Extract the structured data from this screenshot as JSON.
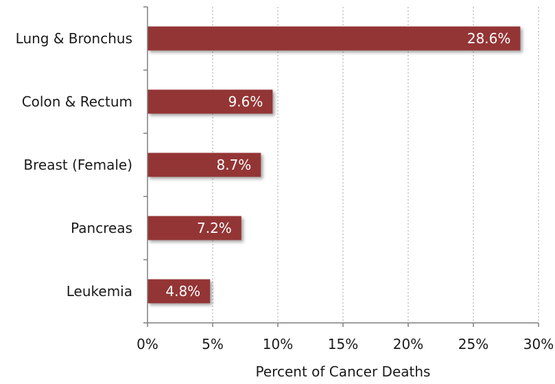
{
  "chart_data": {
    "type": "bar",
    "orientation": "horizontal",
    "title": "",
    "xlabel": "Percent of Cancer Deaths",
    "ylabel": "",
    "categories": [
      "Lung & Bronchus",
      "Colon & Rectum",
      "Breast (Female)",
      "Pancreas",
      "Leukemia"
    ],
    "values": [
      28.6,
      9.6,
      8.7,
      7.2,
      4.8
    ],
    "data_labels": [
      "28.6%",
      "9.6%",
      "8.7%",
      "7.2%",
      "4.8%"
    ],
    "xlim": [
      0,
      30
    ],
    "x_ticks": [
      0,
      5,
      10,
      15,
      20,
      25,
      30
    ],
    "x_tick_labels": [
      "0%",
      "5%",
      "10%",
      "15%",
      "20%",
      "25%",
      "30%"
    ],
    "grid": "vertical dotted",
    "legend": "none",
    "colors": {
      "bar": "#943634",
      "bar_label": "#ffffff",
      "text": "#1a1a1a",
      "axis": "#7f7f7f",
      "grid": "#a6a6a6"
    }
  }
}
